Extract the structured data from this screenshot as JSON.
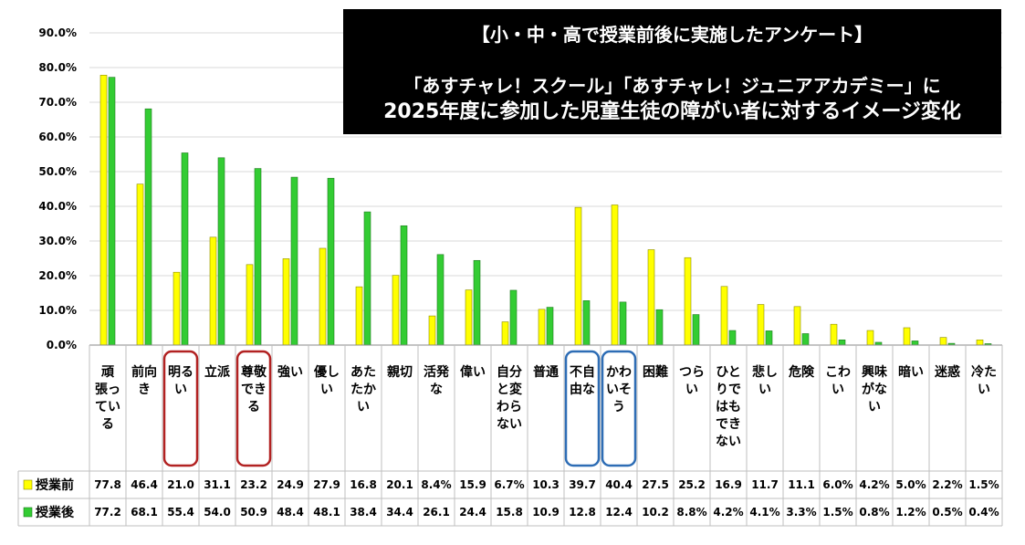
{
  "title_lines": [
    "【小・中・高で授業前後に実施したアンケート】",
    "「あすチャレ！スクール」「あすチャレ！ジュニアアカデミー」に",
    "2025年度に参加した児童生徒の障がい者に対するイメージ変化"
  ],
  "chart_data": {
    "type": "bar",
    "title": "【小・中・高で授業前後に実施したアンケート】「あすチャレ！スクール」「あすチャレ！ジュニアアカデミー」に2025年度に参加した児童生徒の障がい者に対するイメージ変化",
    "ylim": [
      0,
      90
    ],
    "yticks": [
      "0.0%",
      "10.0%",
      "20.0%",
      "30.0%",
      "40.0%",
      "50.0%",
      "60.0%",
      "70.0%",
      "80.0%",
      "90.0%"
    ],
    "categories": [
      "頑張っている",
      "前向き",
      "明るい",
      "立派",
      "尊敬できる",
      "強い",
      "優しい",
      "あたたかい",
      "親切",
      "活発な",
      "偉い",
      "自分と変わらない",
      "普通",
      "不自由な",
      "かわいそう",
      "困難",
      "つらい",
      "ひとりではできない",
      "悲しい",
      "危険",
      "こわい",
      "興味がない",
      "暗い",
      "迷惑",
      "冷たい"
    ],
    "category_lines": [
      [
        "頑",
        "張っ",
        "てい",
        "る"
      ],
      [
        "前向",
        "き"
      ],
      [
        "明る",
        "い"
      ],
      [
        "立派"
      ],
      [
        "尊敬",
        "でき",
        "る"
      ],
      [
        "強い"
      ],
      [
        "優し",
        "い"
      ],
      [
        "あた",
        "たか",
        "い"
      ],
      [
        "親切"
      ],
      [
        "活発",
        "な"
      ],
      [
        "偉い"
      ],
      [
        "自分",
        "と変",
        "わら",
        "ない"
      ],
      [
        "普通"
      ],
      [
        "不自",
        "由な"
      ],
      [
        "かわ",
        "いそ",
        "う"
      ],
      [
        "困難"
      ],
      [
        "つら",
        "い"
      ],
      [
        "ひと",
        "りで",
        "はも",
        "でき",
        "ない"
      ],
      [
        "悲し",
        "い"
      ],
      [
        "危険"
      ],
      [
        "こわ",
        "い"
      ],
      [
        "興味",
        "がな",
        "い"
      ],
      [
        "暗い"
      ],
      [
        "迷惑"
      ],
      [
        "冷た",
        "い"
      ]
    ],
    "series": [
      {
        "name": "授業前",
        "color": "#ffff00",
        "values": [
          77.8,
          46.4,
          21.0,
          31.1,
          23.2,
          24.9,
          27.9,
          16.8,
          20.1,
          8.4,
          15.9,
          6.7,
          10.3,
          39.7,
          40.4,
          27.5,
          25.2,
          16.9,
          11.7,
          11.1,
          6.0,
          4.2,
          5.0,
          2.2,
          1.5
        ],
        "labels": [
          "77.8",
          "46.4",
          "21.0",
          "31.1",
          "23.2",
          "24.9",
          "27.9",
          "16.8",
          "20.1",
          "8.4%",
          "15.9",
          "6.7%",
          "10.3",
          "39.7",
          "40.4",
          "27.5",
          "25.2",
          "16.9",
          "11.7",
          "11.1",
          "6.0%",
          "4.2%",
          "5.0%",
          "2.2%",
          "1.5%"
        ]
      },
      {
        "name": "授業後",
        "color": "#33cc33",
        "values": [
          77.2,
          68.1,
          55.4,
          54.0,
          50.9,
          48.4,
          48.1,
          38.4,
          34.4,
          26.1,
          24.4,
          15.8,
          10.9,
          12.8,
          12.4,
          10.2,
          8.8,
          4.2,
          4.1,
          3.3,
          1.5,
          0.8,
          1.2,
          0.5,
          0.4
        ],
        "labels": [
          "77.2",
          "68.1",
          "55.4",
          "54.0",
          "50.9",
          "48.4",
          "48.1",
          "38.4",
          "34.4",
          "26.1",
          "24.4",
          "15.8",
          "10.9",
          "12.8",
          "12.4",
          "10.2",
          "8.8%",
          "4.2%",
          "4.1%",
          "3.3%",
          "1.5%",
          "0.8%",
          "1.2%",
          "0.5%",
          "0.4%"
        ]
      }
    ],
    "highlights": [
      {
        "category": "明るい",
        "color": "#b22222"
      },
      {
        "category": "尊敬できる",
        "color": "#b22222"
      },
      {
        "category": "不自由な",
        "color": "#2e6db5"
      },
      {
        "category": "かわいそう",
        "color": "#2e6db5"
      }
    ]
  }
}
